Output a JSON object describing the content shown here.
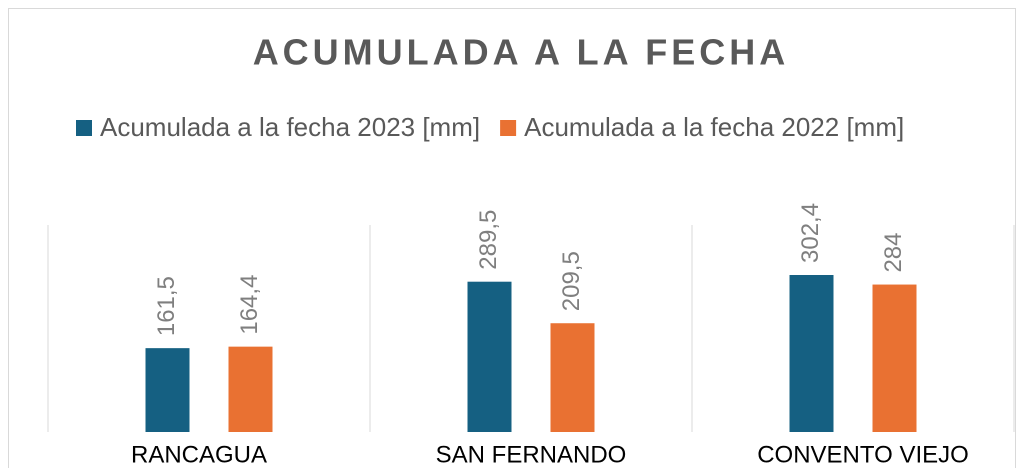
{
  "chart_data": {
    "type": "bar",
    "title": "ACUMULADA A LA FECHA",
    "categories": [
      "RANCAGUA",
      "SAN FERNANDO",
      "CONVENTO VIEJO"
    ],
    "series": [
      {
        "name": "Acumulada a la fecha 2023 [mm]",
        "color": "#156082",
        "values": [
          161.5,
          289.5,
          302.4
        ],
        "value_labels": [
          "161,5",
          "289,5",
          "302,4"
        ]
      },
      {
        "name": "Acumulada a la fecha 2022 [mm]",
        "color": "#e97132",
        "values": [
          164.4,
          209.5,
          284
        ],
        "value_labels": [
          "164,4",
          "209,5",
          "284"
        ]
      }
    ],
    "legend": "top"
  }
}
